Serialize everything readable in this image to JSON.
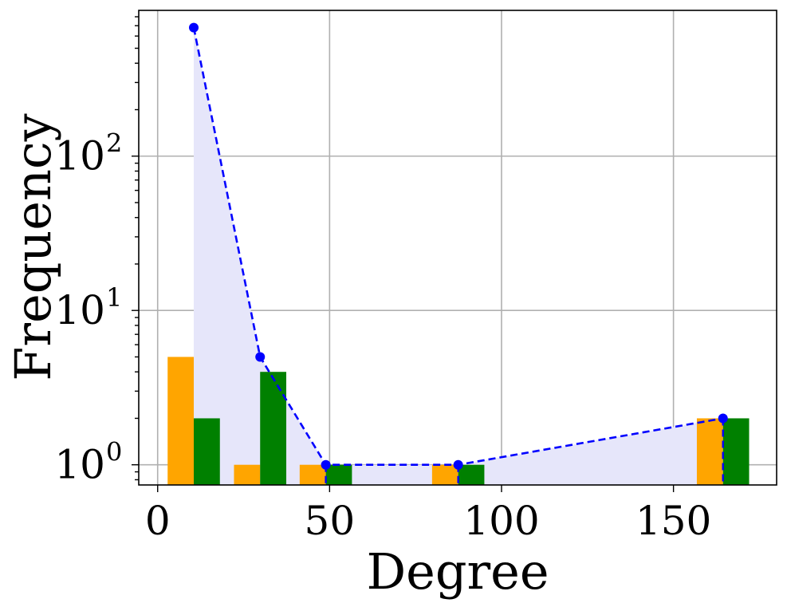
{
  "chart_data": {
    "type": "bar",
    "title": "",
    "xlabel": "Degree",
    "ylabel": "Frequency",
    "xlim": [
      -5.5,
      180
    ],
    "ylim": [
      0.74,
      880
    ],
    "yscale": "log",
    "grid": true,
    "x_ticks": [
      {
        "value": 0,
        "label": "0"
      },
      {
        "value": 50,
        "label": "50"
      },
      {
        "value": 100,
        "label": "100"
      },
      {
        "value": 150,
        "label": "150"
      }
    ],
    "y_ticks": [
      {
        "value": 1,
        "base": "10",
        "exp": "0"
      },
      {
        "value": 10,
        "base": "10",
        "exp": "1"
      },
      {
        "value": 100,
        "base": "10",
        "exp": "2"
      }
    ],
    "bar_series": [
      {
        "color": "#ffa500",
        "bars": [
          {
            "x0": 2.9,
            "x1": 10.5,
            "value": 5
          },
          {
            "x0": 22.2,
            "x1": 29.8,
            "value": 1
          },
          {
            "x0": 41.3,
            "x1": 48.9,
            "value": 1
          },
          {
            "x0": 79.8,
            "x1": 87.4,
            "value": 1
          },
          {
            "x0": 156.8,
            "x1": 164.4,
            "value": 2
          }
        ]
      },
      {
        "color": "#008000",
        "bars": [
          {
            "x0": 10.5,
            "x1": 18.1,
            "value": 2
          },
          {
            "x0": 29.8,
            "x1": 37.4,
            "value": 4
          },
          {
            "x0": 48.9,
            "x1": 56.5,
            "value": 1
          },
          {
            "x0": 87.4,
            "x1": 95.0,
            "value": 1
          },
          {
            "x0": 164.4,
            "x1": 172.0,
            "value": 2
          }
        ]
      }
    ],
    "line_series": {
      "color": "#0000ff",
      "fill_color": "#e6e6fa",
      "style": "dashed",
      "points": [
        {
          "x": 10.5,
          "y": 680
        },
        {
          "x": 29.8,
          "y": 5
        },
        {
          "x": 48.9,
          "y": 1
        },
        {
          "x": 87.4,
          "y": 1
        },
        {
          "x": 164.4,
          "y": 2
        }
      ]
    }
  }
}
